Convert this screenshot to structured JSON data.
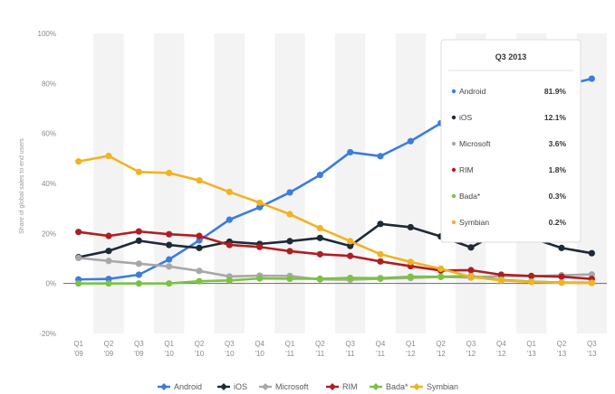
{
  "header": {
    "text": ""
  },
  "chart_data": {
    "type": "line",
    "ylabel": "Share of global sales to end users",
    "ylim": [
      -20,
      100
    ],
    "y_ticks": [
      "100%",
      "80%",
      "60%",
      "40%",
      "20%",
      "0%",
      "-20%"
    ],
    "y_tick_values": [
      100,
      80,
      60,
      40,
      20,
      0,
      -20
    ],
    "categories": [
      [
        "Q1",
        "'09"
      ],
      [
        "Q2",
        "'09"
      ],
      [
        "Q3",
        "'09"
      ],
      [
        "Q1",
        "'10"
      ],
      [
        "Q2",
        "'10"
      ],
      [
        "Q3",
        "'10"
      ],
      [
        "Q4",
        "'10"
      ],
      [
        "Q1",
        "'11"
      ],
      [
        "Q2",
        "'11"
      ],
      [
        "Q3",
        "'11"
      ],
      [
        "Q4",
        "'11"
      ],
      [
        "Q1",
        "'12"
      ],
      [
        "Q2",
        "'12"
      ],
      [
        "Q3",
        "'12"
      ],
      [
        "Q4",
        "'12"
      ],
      [
        "Q1",
        "'13"
      ],
      [
        "Q2",
        "'13"
      ],
      [
        "Q3",
        "'13"
      ]
    ],
    "grid": "vertical-bands",
    "legend_position": "bottom",
    "series": [
      {
        "name": "Android",
        "color": "#3b7ddd",
        "values": [
          1.6,
          1.8,
          3.5,
          9.6,
          17.2,
          25.5,
          30.5,
          36.4,
          43.4,
          52.5,
          50.9,
          56.9,
          64.1,
          72.4,
          69.7,
          74.4,
          79.0,
          81.9
        ]
      },
      {
        "name": "iOS",
        "color": "#1e2a38",
        "values": [
          10.5,
          13.0,
          17.1,
          15.4,
          14.2,
          16.7,
          15.8,
          16.9,
          18.2,
          15.0,
          23.8,
          22.5,
          18.8,
          14.4,
          20.9,
          18.2,
          14.2,
          12.1
        ]
      },
      {
        "name": "Microsoft",
        "color": "#a8a8a8",
        "values": [
          10.2,
          9.0,
          7.9,
          6.8,
          5.0,
          2.8,
          3.1,
          3.0,
          1.6,
          1.5,
          1.9,
          2.2,
          2.6,
          2.4,
          3.0,
          2.9,
          3.3,
          3.6
        ]
      },
      {
        "name": "RIM",
        "color": "#b01e23",
        "values": [
          20.6,
          19.0,
          20.8,
          19.7,
          19.0,
          15.4,
          14.6,
          12.9,
          11.7,
          11.0,
          8.8,
          6.9,
          5.2,
          5.3,
          3.5,
          3.0,
          2.7,
          1.8
        ]
      },
      {
        "name": "Bada*",
        "color": "#7cc242",
        "values": [
          0,
          0,
          0,
          0,
          0.9,
          1.2,
          2.0,
          1.9,
          1.9,
          2.2,
          2.1,
          2.7,
          2.7,
          3.0,
          1.5,
          0.7,
          0.4,
          0.3
        ]
      },
      {
        "name": "Symbian",
        "color": "#f0b323",
        "values": [
          48.8,
          51.0,
          44.6,
          44.2,
          41.2,
          36.6,
          32.3,
          27.7,
          22.1,
          16.9,
          11.7,
          8.6,
          5.9,
          2.6,
          1.2,
          0.6,
          0.3,
          0.2
        ]
      }
    ],
    "tooltip": {
      "title": "Q3 2013",
      "rows": [
        {
          "name": "Android",
          "value": "81.9%",
          "color": "#3b7ddd"
        },
        {
          "name": "iOS",
          "value": "12.1%",
          "color": "#1e2a38"
        },
        {
          "name": "Microsoft",
          "value": "3.6%",
          "color": "#a8a8a8"
        },
        {
          "name": "RIM",
          "value": "1.8%",
          "color": "#b01e23"
        },
        {
          "name": "Bada*",
          "value": "0.3%",
          "color": "#7cc242"
        },
        {
          "name": "Symbian",
          "value": "0.2%",
          "color": "#f0b323"
        }
      ]
    }
  }
}
